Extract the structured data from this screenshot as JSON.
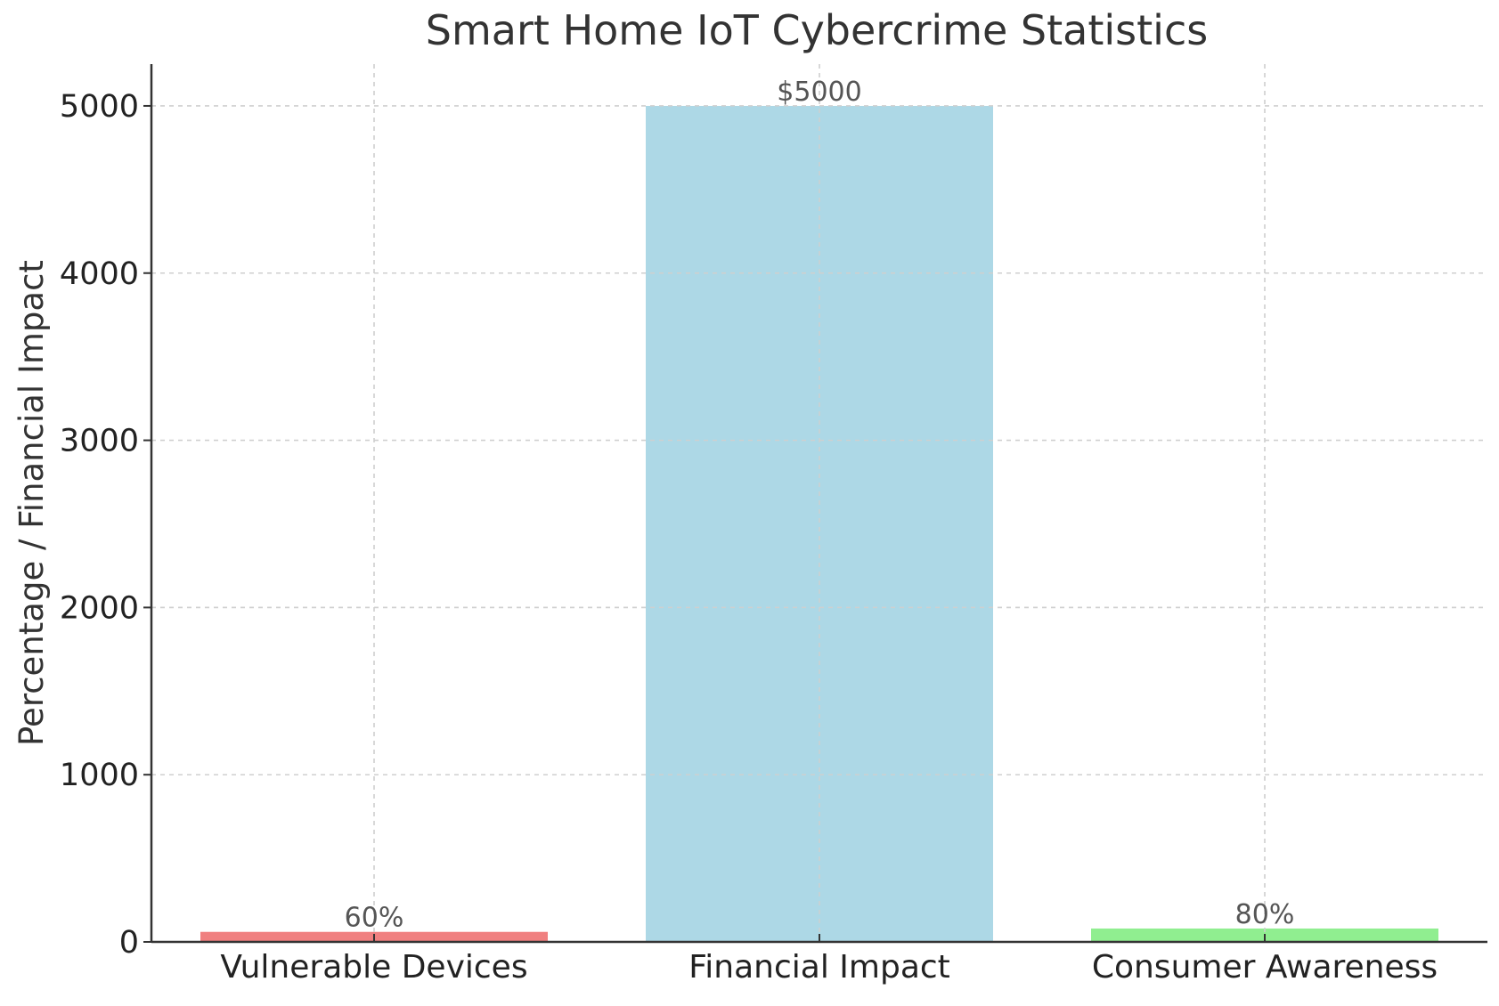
{
  "chart_data": {
    "type": "bar",
    "title": "Smart Home IoT Cybercrime Statistics",
    "xlabel": "",
    "ylabel": "Percentage / Financial Impact",
    "categories": [
      "Vulnerable Devices",
      "Financial Impact",
      "Consumer Awareness"
    ],
    "values": [
      60,
      5000,
      80
    ],
    "value_labels": [
      "60%",
      "$5000",
      "80%"
    ],
    "colors": [
      "#f08080",
      "#add8e6",
      "#90ee90"
    ],
    "ylim": [
      0,
      5250
    ],
    "yticks": [
      0,
      1000,
      2000,
      3000,
      4000,
      5000
    ],
    "grid": true,
    "legend": "none"
  }
}
